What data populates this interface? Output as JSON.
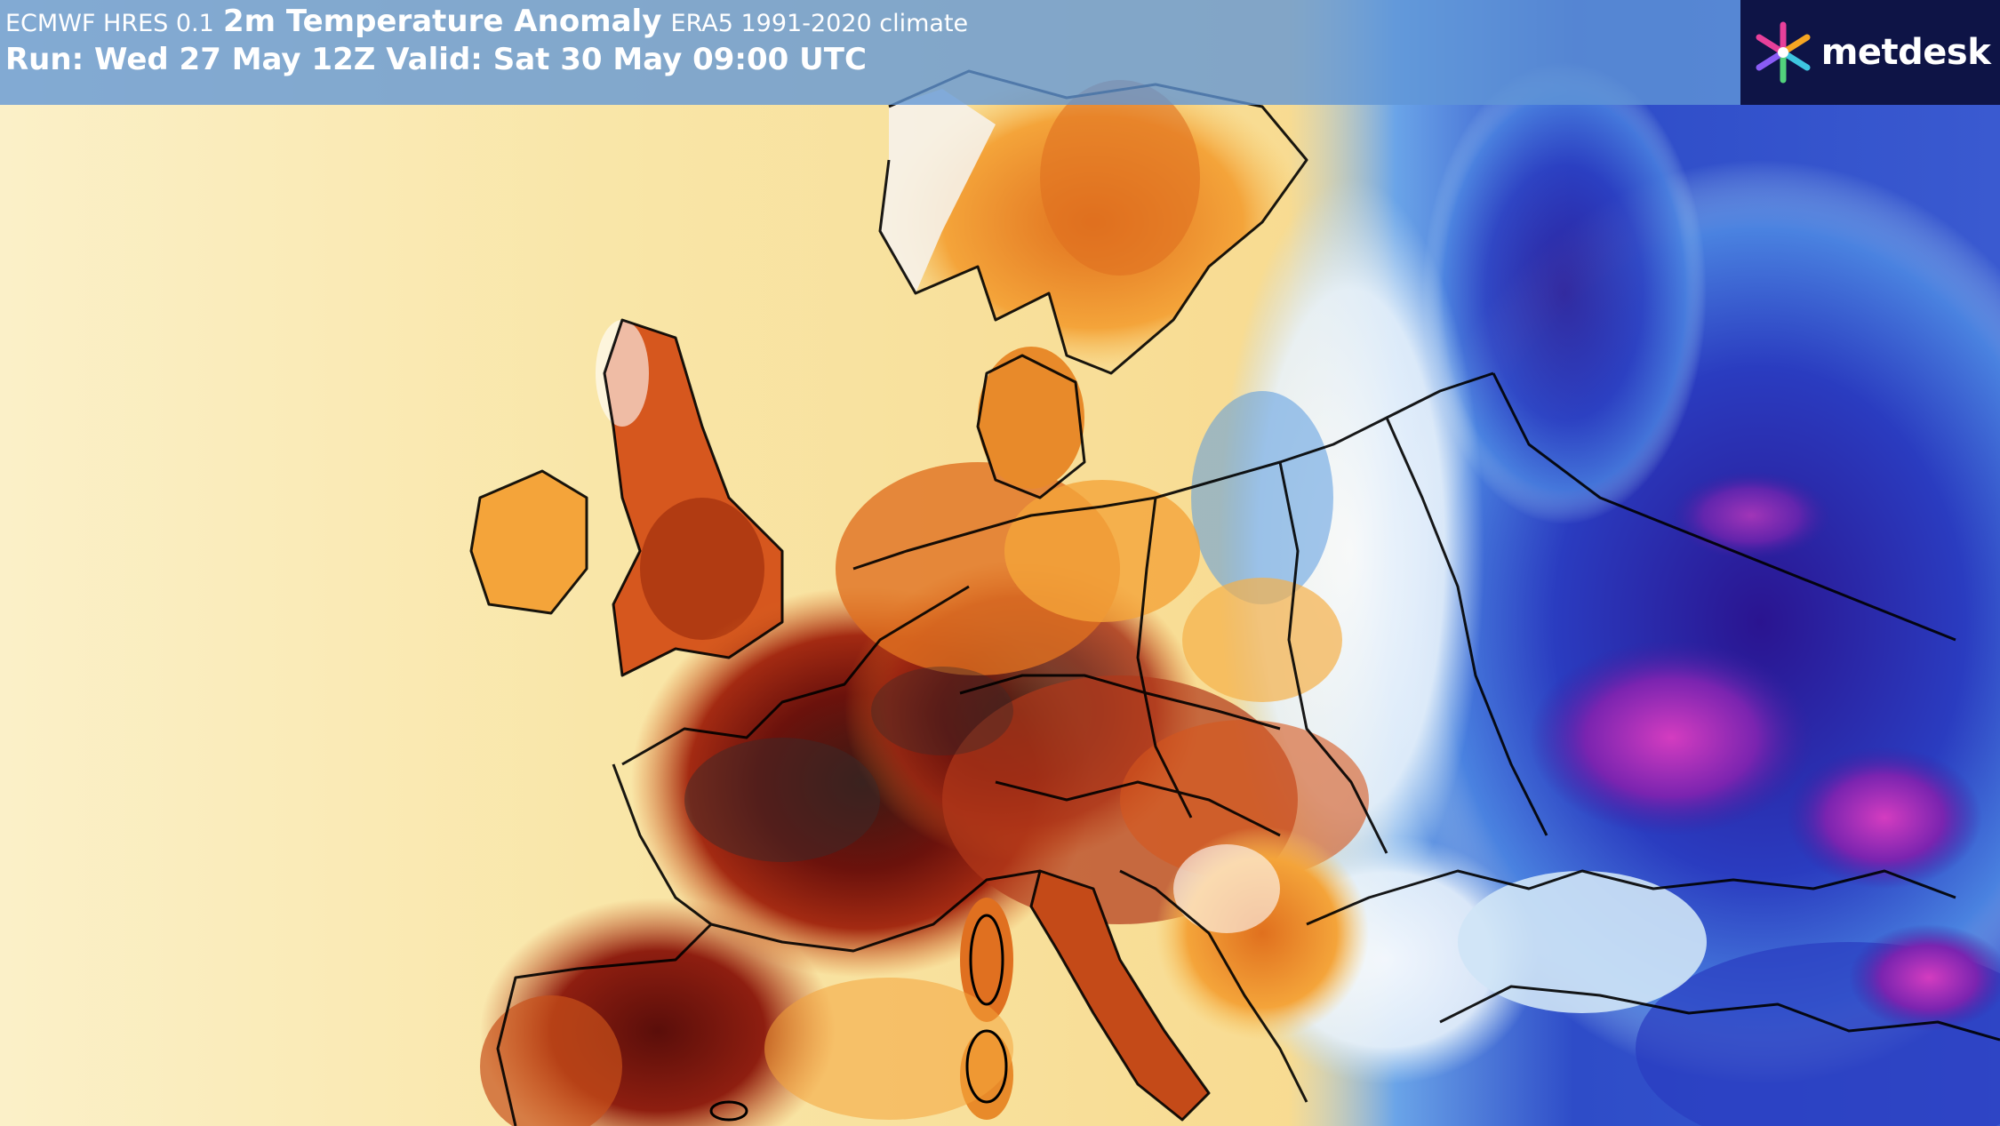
{
  "header": {
    "model": "ECMWF HRES 0.1",
    "parameter": "2m Temperature Anomaly",
    "climate": "ERA5 1991-2020 climate",
    "run_line": "Run: Wed 27 May 12Z Valid: Sat 30 May 09:00 UTC"
  },
  "brand": {
    "name": "metdesk",
    "logo_icon": "metdesk-starburst-logo",
    "logo_colors": [
      "#e8409a",
      "#f5a623",
      "#3ec6e0",
      "#8a5cf6",
      "#52d17c"
    ]
  },
  "map": {
    "colors": {
      "ocean_warm": "#f7d98a",
      "warm": "#f4a43a",
      "hot": "#c0421a",
      "very_hot": "#6b120c",
      "extreme": "#3a2a2a",
      "cool": "#ffffff",
      "cold": "#3a70d8",
      "very_cold": "#1a1a9a",
      "extreme_cold": "#b23cc8"
    }
  }
}
